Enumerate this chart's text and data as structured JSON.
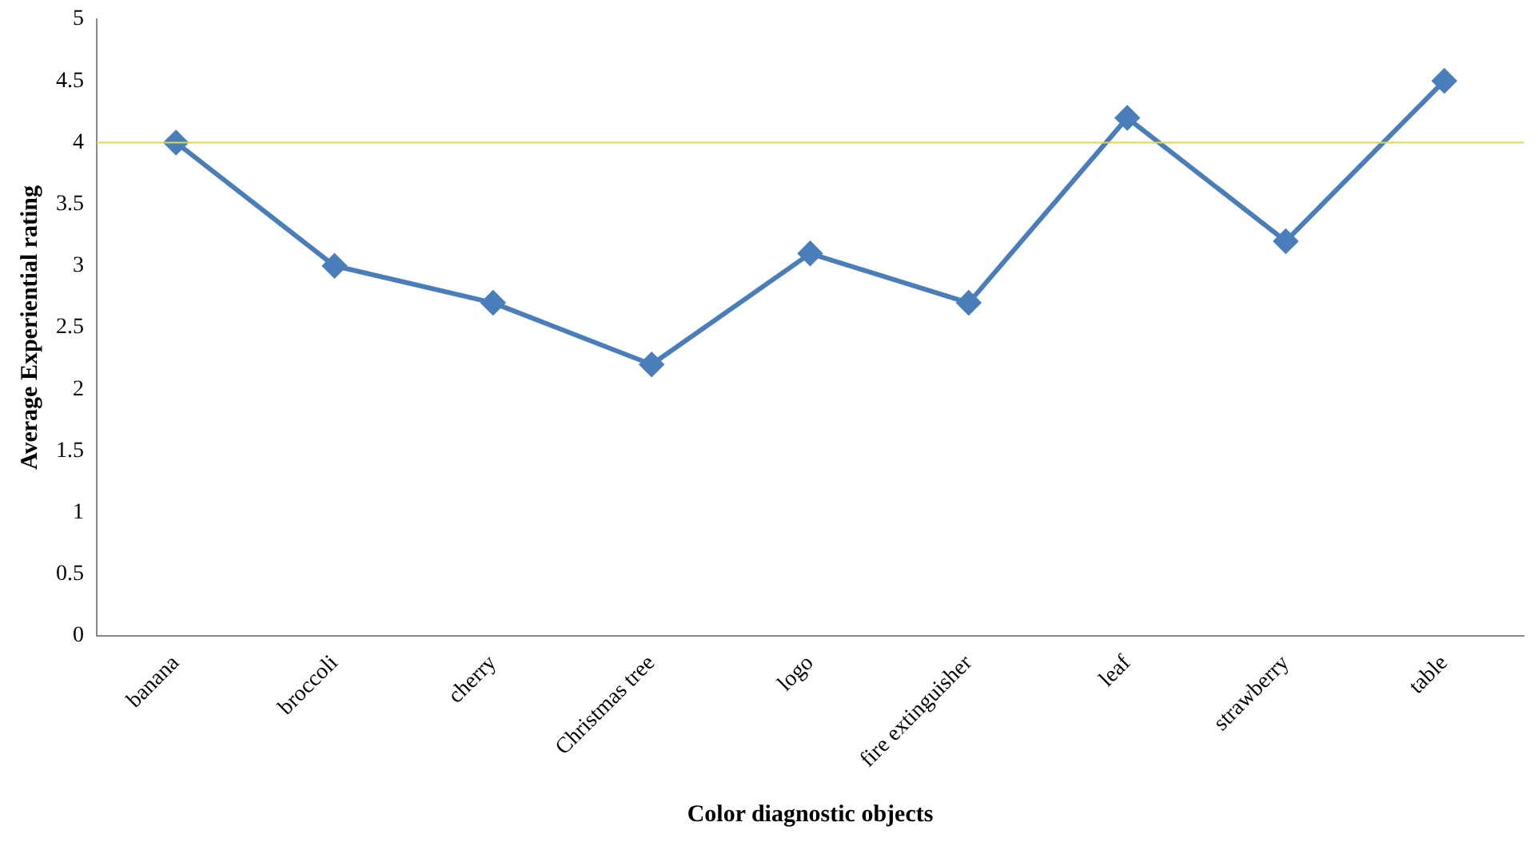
{
  "chart_data": {
    "type": "line",
    "xlabel": "Color diagnostic objects",
    "ylabel": "Average Experiential rating",
    "categories": [
      "banana",
      "broccoli",
      "cherry",
      "Christmas tree",
      "logo",
      "fire extinguisher",
      "leaf",
      "strawberry",
      "table"
    ],
    "series": [
      {
        "color": "#4a7ebb",
        "values": [
          4,
          3,
          2.7,
          2.2,
          3.1,
          2.7,
          4.2,
          3.2,
          4.5
        ]
      }
    ],
    "ylim": [
      0,
      5
    ],
    "yticks": [
      0,
      0.5,
      1,
      1.5,
      2,
      2.5,
      3,
      3.5,
      4,
      4.5,
      5
    ],
    "ref_lines": [
      {
        "axis": "y",
        "value": 4,
        "color": "#e0d84c"
      }
    ],
    "grid": false,
    "legend": false,
    "marker": "diamond",
    "line_style": "solid"
  }
}
